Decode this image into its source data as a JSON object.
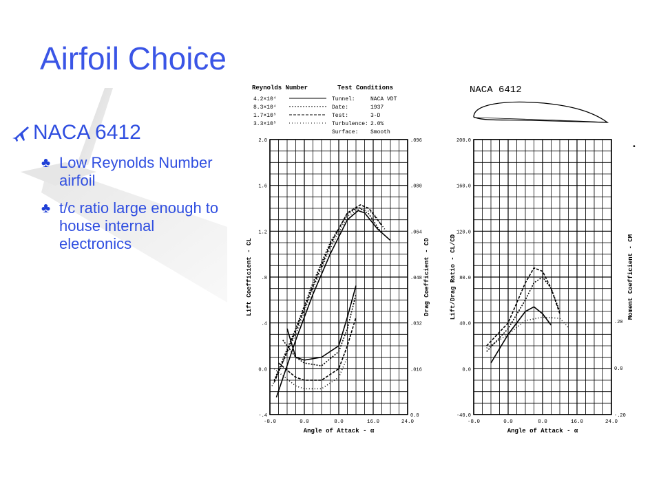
{
  "slide": {
    "title": "Airfoil Choice",
    "bullet": "NACA 6412",
    "sub_bullets": [
      "Low Reynolds Number airfoil",
      "t/c ratio large enough to house internal electronics"
    ],
    "accent_color": "#2f4ee0",
    "bullet_icon": "airplane-icon",
    "sub_bullet_icon": "club-icon"
  },
  "chart_data": [
    {
      "type": "line",
      "airfoil_label": "NACA 6412",
      "legend_title_left": "Reynolds Number",
      "legend_title_right": "Test Conditions",
      "reynolds_numbers": [
        "4.2×10⁴",
        "8.3×10⁴",
        "1.7×10⁵",
        "3.3×10⁵"
      ],
      "test_conditions": [
        [
          "Tunnel:",
          "NACA VDT"
        ],
        [
          "Date:",
          "1937"
        ],
        [
          "Test:",
          "3-D"
        ],
        [
          "Turbulence:",
          "2.0%"
        ],
        [
          "Surface:",
          "Smooth"
        ]
      ],
      "xlabel": "Angle of Attack - α",
      "ylabel_left": "Lift Coefficient - CL",
      "ylabel_right": "Drag Coefficient - CD",
      "xlim": [
        -8,
        24
      ],
      "ylim_left": [
        -0.4,
        2.0
      ],
      "ylim_right": [
        0,
        0.096
      ],
      "x_ticks": [
        "-8.0",
        "0.0",
        "8.0",
        "16.0",
        "24.0"
      ],
      "left_ticks": [
        "-.4",
        "0.0",
        ".4",
        ".8",
        "1.2",
        "1.6",
        "2.0"
      ],
      "right_ticks": [
        "0.0",
        ".016",
        ".032",
        ".048",
        ".064",
        ".080",
        ".096"
      ],
      "lift_series": [
        {
          "x": [
            -6.5,
            -2,
            2,
            6,
            10,
            12.5,
            14,
            17,
            20
          ],
          "y": [
            -0.25,
            0.25,
            0.65,
            1.0,
            1.3,
            1.38,
            1.36,
            1.22,
            1.12
          ]
        },
        {
          "x": [
            -7,
            -2,
            2,
            6,
            10,
            12.5,
            15,
            18
          ],
          "y": [
            -0.1,
            0.35,
            0.75,
            1.1,
            1.35,
            1.41,
            1.35,
            1.18
          ]
        },
        {
          "x": [
            -7,
            -2,
            2,
            6,
            10,
            13,
            15,
            18
          ],
          "y": [
            -0.12,
            0.33,
            0.72,
            1.08,
            1.36,
            1.43,
            1.4,
            1.25
          ]
        },
        {
          "x": [
            -7.5,
            -2,
            2,
            6,
            10,
            13,
            16,
            19
          ],
          "y": [
            -0.15,
            0.3,
            0.7,
            1.05,
            1.33,
            1.4,
            1.36,
            1.2
          ]
        }
      ],
      "drag_series": [
        {
          "x": [
            -4,
            -2,
            0,
            4,
            8,
            10,
            12
          ],
          "y": [
            0.03,
            0.02,
            0.019,
            0.02,
            0.024,
            0.034,
            0.045
          ]
        },
        {
          "x": [
            -5,
            -2,
            0,
            4,
            8,
            10,
            12
          ],
          "y": [
            0.026,
            0.02,
            0.018,
            0.017,
            0.022,
            0.03,
            0.042
          ]
        },
        {
          "x": [
            -6,
            -2,
            0,
            4,
            8,
            10,
            12
          ],
          "y": [
            0.018,
            0.013,
            0.012,
            0.012,
            0.016,
            0.024,
            0.034
          ]
        },
        {
          "x": [
            -7,
            -2,
            0,
            4,
            8,
            10
          ],
          "y": [
            0.016,
            0.01,
            0.009,
            0.009,
            0.013,
            0.02
          ]
        }
      ]
    },
    {
      "type": "line",
      "xlabel": "Angle of Attack - α",
      "ylabel_left": "Lift/Drag Ratio - CL/CD",
      "ylabel_right": "Moment Coefficient - CM",
      "xlim": [
        -8,
        24
      ],
      "ylim_left": [
        -40,
        200
      ],
      "ylim_right": [
        -0.2,
        0.2
      ],
      "x_ticks": [
        "-8.0",
        "0.0",
        "8.0",
        "16.0",
        "24.0"
      ],
      "left_ticks": [
        "-40.0",
        "0.0",
        "40.0",
        "80.0",
        "120.0",
        "160.0",
        "200.0"
      ],
      "right_ticks": [
        ".20",
        "0.0",
        "-.20"
      ],
      "ld_series": [
        {
          "x": [
            -4,
            0,
            4,
            6,
            8,
            10
          ],
          "y": [
            5,
            30,
            50,
            54,
            48,
            38
          ]
        },
        {
          "x": [
            -5,
            0,
            4,
            6,
            8,
            10,
            12
          ],
          "y": [
            15,
            35,
            60,
            75,
            80,
            70,
            50
          ]
        },
        {
          "x": [
            -5,
            0,
            4,
            6,
            8,
            10,
            12
          ],
          "y": [
            20,
            40,
            75,
            88,
            85,
            70,
            48
          ]
        },
        {
          "x": [
            -5,
            0,
            4,
            8,
            12,
            14
          ],
          "y": [
            18,
            30,
            42,
            45,
            44,
            36
          ]
        }
      ]
    }
  ]
}
